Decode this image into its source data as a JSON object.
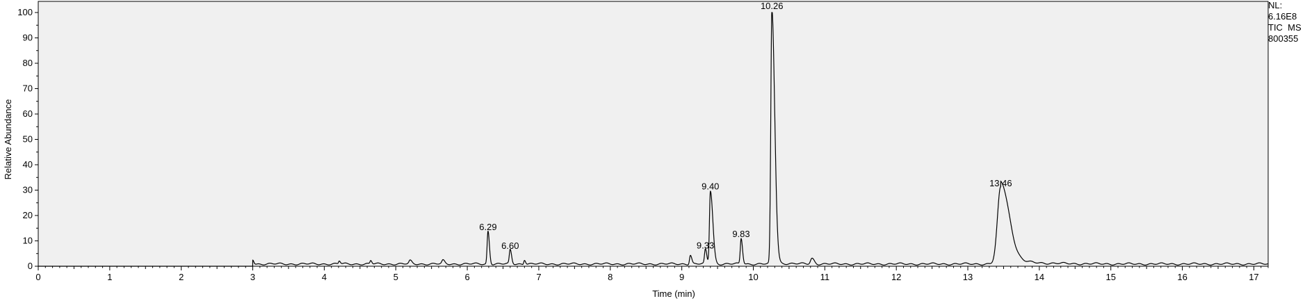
{
  "chart_data": {
    "type": "line",
    "title": "",
    "xlabel": "Time (min)",
    "ylabel": "Relative Abundance",
    "xlim": [
      0,
      17.2
    ],
    "ylim": [
      0,
      100
    ],
    "x_ticks": [
      "0",
      "1",
      "2",
      "3",
      "4",
      "5",
      "6",
      "7",
      "8",
      "9",
      "10",
      "11",
      "12",
      "13",
      "14",
      "15",
      "16",
      "17"
    ],
    "y_ticks": [
      "0",
      "10",
      "20",
      "30",
      "40",
      "50",
      "60",
      "70",
      "80",
      "90",
      "100"
    ],
    "series": [
      {
        "name": "TIC MS 800355",
        "baseline_start": 3.0,
        "peaks": [
          {
            "rt": 3.0,
            "height": 1.8,
            "width": 0.01
          },
          {
            "rt": 4.21,
            "height": 1.2,
            "width": 0.01
          },
          {
            "rt": 4.65,
            "height": 1.3,
            "width": 0.01
          },
          {
            "rt": 5.2,
            "height": 1.2,
            "width": 0.015
          },
          {
            "rt": 5.66,
            "height": 1.3,
            "width": 0.015
          },
          {
            "rt": 6.29,
            "height": 12.9,
            "width": 0.012
          },
          {
            "rt": 6.6,
            "height": 5.5,
            "width": 0.012
          },
          {
            "rt": 6.8,
            "height": 1.8,
            "width": 0.01
          },
          {
            "rt": 9.12,
            "height": 3.6,
            "width": 0.012
          },
          {
            "rt": 9.33,
            "height": 5.6,
            "width": 0.012
          },
          {
            "rt": 9.4,
            "height": 28.9,
            "width": 0.013
          },
          {
            "rt": 9.83,
            "height": 10.1,
            "width": 0.012
          },
          {
            "rt": 10.26,
            "height": 100,
            "width": 0.015
          },
          {
            "rt": 10.82,
            "height": 2.2,
            "width": 0.02
          },
          {
            "rt": 13.46,
            "height": 30.2,
            "width": 0.045
          }
        ]
      }
    ],
    "peak_labels": [
      {
        "rt": 6.29,
        "label": "6.29",
        "height": 12.9
      },
      {
        "rt": 6.6,
        "label": "6.60",
        "height": 5.5
      },
      {
        "rt": 9.33,
        "label": "9.33",
        "height": 5.6
      },
      {
        "rt": 9.4,
        "label": "9.40",
        "height": 28.9
      },
      {
        "rt": 9.83,
        "label": "9.83",
        "height": 10.1
      },
      {
        "rt": 10.26,
        "label": "10.26",
        "height": 100
      },
      {
        "rt": 13.46,
        "label": "13.46",
        "height": 30.2
      }
    ],
    "annotation": {
      "nl_label": "NL:",
      "nl_value": "6.16E8",
      "filter": "TIC  MS",
      "sample": "800355"
    }
  }
}
